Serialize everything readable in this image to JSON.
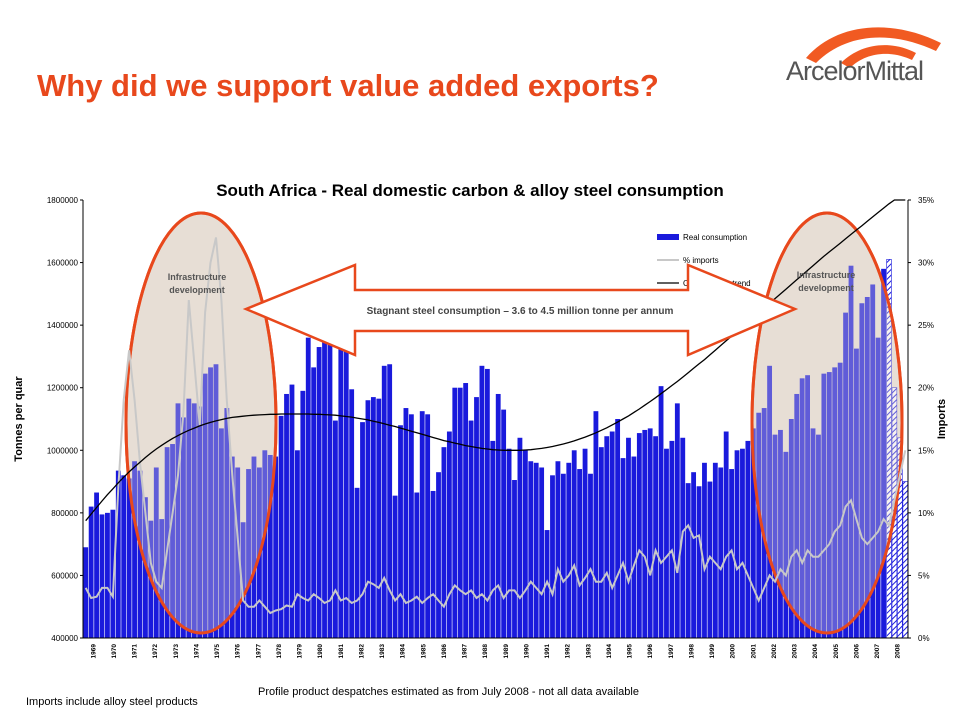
{
  "header": {
    "title": "Why did we support value added exports?",
    "logo_text": "ArcelorMittal"
  },
  "footnotes": {
    "left": "Imports include alloy steel products",
    "center": "Profile product despatches estimated as from July 2008 - not all data available"
  },
  "colors": {
    "title": "#e8481c",
    "bars": "#1a1adc",
    "imports_line": "#c8c8c8",
    "trend_line": "#000000",
    "ellipse_fill": "#e4dbd0",
    "ellipse_stroke": "#e8481c",
    "arrow_fill": "#ffffff",
    "arrow_stroke": "#e8481c"
  },
  "annotations": {
    "left_ellipse_label": [
      "Infrastructure",
      "development"
    ],
    "right_ellipse_label": [
      "Infrastructure",
      "development"
    ],
    "arrow_text": "Stagnant steel consumption – 3.6 to 4.5 million tonne per annum"
  },
  "chart_data": {
    "type": "bar",
    "title": "South Africa - Real domestic carbon & alloy steel consumption",
    "ylabel": "Tonnes per quar",
    "y2label": "Imports",
    "ylim": [
      400000,
      1800000
    ],
    "y2lim": [
      0,
      35
    ],
    "yticks": [
      "400000",
      "600000",
      "800000",
      "1000000",
      "1200000",
      "1400000",
      "1600000",
      "1800000"
    ],
    "y2ticks": [
      "0%",
      "5%",
      "10%",
      "15%",
      "20%",
      "25%",
      "30%",
      "35%"
    ],
    "xticks": [
      "1969",
      "1970",
      "1971",
      "1972",
      "1973",
      "1974",
      "1975",
      "1976",
      "1977",
      "1978",
      "1979",
      "1980",
      "1981",
      "1982",
      "1983",
      "1984",
      "1985",
      "1986",
      "1987",
      "1988",
      "1989",
      "1990",
      "1991",
      "1992",
      "1993",
      "1994",
      "1995",
      "1996",
      "1997",
      "1998",
      "1999",
      "2000",
      "2001",
      "2002",
      "2003",
      "2004",
      "2005",
      "2006",
      "2007",
      "2008"
    ],
    "legend": {
      "position": "top-right",
      "entries": [
        "Real consumption",
        "% imports",
        "Consumption trend"
      ]
    },
    "series": [
      {
        "name": "Real consumption",
        "values": [
          690000,
          820000,
          865000,
          795000,
          800000,
          810000,
          935000,
          920000,
          910000,
          965000,
          935000,
          850000,
          775000,
          945000,
          780000,
          1010000,
          1020000,
          1150000,
          1105000,
          1165000,
          1150000,
          1140000,
          1245000,
          1265000,
          1275000,
          1070000,
          1135000,
          980000,
          945000,
          770000,
          940000,
          980000,
          945000,
          1000000,
          985000,
          980000,
          1110000,
          1180000,
          1210000,
          1000000,
          1190000,
          1360000,
          1265000,
          1330000,
          1495000,
          1420000,
          1095000,
          1360000,
          1330000,
          1195000,
          880000,
          1090000,
          1160000,
          1170000,
          1165000,
          1270000,
          1275000,
          855000,
          1080000,
          1135000,
          1115000,
          865000,
          1125000,
          1115000,
          870000,
          930000,
          1010000,
          1060000,
          1200000,
          1200000,
          1215000,
          1095000,
          1170000,
          1270000,
          1260000,
          1030000,
          1180000,
          1130000,
          1005000,
          905000,
          1040000,
          1000000,
          965000,
          960000,
          945000,
          745000,
          920000,
          965000,
          925000,
          960000,
          1000000,
          940000,
          1005000,
          925000,
          1125000,
          1010000,
          1045000,
          1060000,
          1100000,
          975000,
          1040000,
          980000,
          1055000,
          1065000,
          1070000,
          1045000,
          1205000,
          1005000,
          1030000,
          1150000,
          1040000,
          895000,
          930000,
          885000,
          960000,
          900000,
          960000,
          945000,
          1060000,
          940000,
          1000000,
          1005000,
          1030000,
          1070000,
          1120000,
          1135000,
          1270000,
          1050000,
          1065000,
          995000,
          1100000,
          1180000,
          1230000,
          1240000,
          1070000,
          1050000,
          1245000,
          1250000,
          1265000,
          1280000,
          1440000,
          1590000,
          1325000,
          1470000,
          1490000,
          1530000,
          1360000,
          1580000,
          1610000,
          1200000,
          1040000,
          900000
        ],
        "estimated_last_n": 4
      },
      {
        "name": "% imports",
        "values": [
          4,
          3.2,
          3.3,
          4,
          4,
          3.3,
          12,
          19,
          23,
          19,
          14,
          10,
          6,
          4.5,
          4,
          7,
          10,
          13,
          18,
          27,
          22,
          17,
          26,
          30,
          32,
          27,
          19,
          13,
          8,
          3,
          2.5,
          2.5,
          3,
          2.5,
          2,
          2.2,
          2.3,
          2.6,
          2.5,
          3.5,
          3.2,
          3,
          3.5,
          3.2,
          2.8,
          3,
          3.8,
          3,
          3.2,
          2.8,
          3,
          3.5,
          4.5,
          4.3,
          4,
          4.8,
          3.8,
          3,
          3.5,
          2.8,
          3,
          3.3,
          2.8,
          3.2,
          3.5,
          3,
          2.5,
          3.5,
          4.2,
          3.8,
          3.5,
          3.8,
          3.2,
          3.5,
          3,
          3.8,
          4.2,
          3.2,
          3.8,
          3.8,
          3.2,
          3.8,
          4.5,
          4,
          3.5,
          4.5,
          3.5,
          5.5,
          4.5,
          5,
          5.8,
          4.2,
          4.8,
          5.5,
          4.5,
          4.5,
          5.2,
          4,
          5,
          6,
          4.5,
          5.8,
          7,
          6.5,
          5,
          7,
          6,
          6.5,
          7,
          5.2,
          8.5,
          9,
          8,
          8.2,
          5.5,
          6.5,
          6,
          5.5,
          6.5,
          7,
          5.5,
          6,
          5,
          4,
          3,
          4,
          5,
          4.5,
          5.5,
          5,
          6.5,
          7,
          6,
          7,
          6.5,
          6.5,
          7,
          7.5,
          8.5,
          9,
          10.5,
          11,
          9.5,
          8,
          7.5,
          8,
          8.5,
          9.5,
          9,
          11,
          13,
          15
        ],
        "marker": "none"
      },
      {
        "name": "Consumption trend",
        "values": [
          775000,
          796000,
          817000,
          838000,
          858000,
          877000,
          896000,
          914000,
          931000,
          947000,
          962000,
          977000,
          991000,
          1004000,
          1016000,
          1027000,
          1038000,
          1047000,
          1056000,
          1064000,
          1071000,
          1078000,
          1084000,
          1089000,
          1094000,
          1098000,
          1102000,
          1105000,
          1107000,
          1109000,
          1111000,
          1112000,
          1113000,
          1114000,
          1115000,
          1115000,
          1116000,
          1116000,
          1116000,
          1116000,
          1116000,
          1116000,
          1115000,
          1115000,
          1114000,
          1113000,
          1112000,
          1110000,
          1108000,
          1106000,
          1103000,
          1100000,
          1097000,
          1093000,
          1089000,
          1085000,
          1080000,
          1076000,
          1071000,
          1066000,
          1061000,
          1056000,
          1051000,
          1046000,
          1041000,
          1036000,
          1031000,
          1027000,
          1023000,
          1019000,
          1015000,
          1012000,
          1009000,
          1006000,
          1004000,
          1002000,
          1001000,
          1000000,
          1000000,
          1000000,
          1000000,
          1001000,
          1002000,
          1004000,
          1006000,
          1009000,
          1012000,
          1016000,
          1020000,
          1025000,
          1030000,
          1036000,
          1042000,
          1049000,
          1056000,
          1064000,
          1072000,
          1081000,
          1090000,
          1100000,
          1110000,
          1121000,
          1132000,
          1144000,
          1156000,
          1168000,
          1181000,
          1194000,
          1207000,
          1220000,
          1234000,
          1248000,
          1262000,
          1276000,
          1290000,
          1305000,
          1320000,
          1335000,
          1350000,
          1365000,
          1380000,
          1395000,
          1410000,
          1425000,
          1440000,
          1455000,
          1470000,
          1485000,
          1500000,
          1515000,
          1530000,
          1545000,
          1560000,
          1575000,
          1590000,
          1605000,
          1620000,
          1634000,
          1648000,
          1662000,
          1676000,
          1690000,
          1704000,
          1718000,
          1732000,
          1746000,
          1760000,
          1774000,
          1788000,
          1800000,
          1800000,
          1800000
        ],
        "marker": "none"
      }
    ]
  }
}
